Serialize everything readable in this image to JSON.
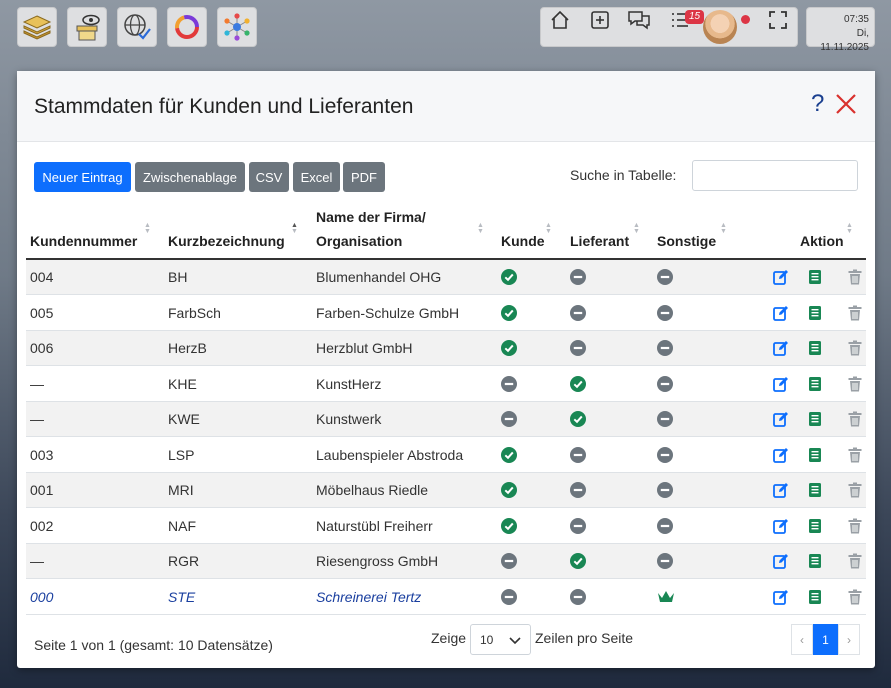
{
  "clock": {
    "time": "07:35",
    "date": "Di, 11.11.2025"
  },
  "notifications": {
    "count": "15"
  },
  "modal": {
    "title": "Stammdaten für Kunden und Lieferanten",
    "help": "?"
  },
  "toolbar": {
    "new_entry": "Neuer Eintrag",
    "clipboard": "Zwischenablage",
    "csv": "CSV",
    "excel": "Excel",
    "pdf": "PDF",
    "search_label": "Suche in Tabelle:",
    "search_value": ""
  },
  "table": {
    "headers": {
      "kundennummer": "Kundennummer",
      "kurz": "Kurzbezeichnung",
      "name_line1": "Name der Firma/",
      "name_line2": "Organisation",
      "kunde": "Kunde",
      "lieferant": "Lieferant",
      "sonstige": "Sonstige",
      "aktion": "Aktion"
    },
    "rows": [
      {
        "nr": "004",
        "kurz": "BH",
        "name": "Blumenhandel OHG",
        "kunde": "yes",
        "lieferant": "no",
        "sonstige": "no"
      },
      {
        "nr": "005",
        "kurz": "FarbSch",
        "name": "Farben-Schulze GmbH",
        "kunde": "yes",
        "lieferant": "no",
        "sonstige": "no"
      },
      {
        "nr": "006",
        "kurz": "HerzB",
        "name": "Herzblut GmbH",
        "kunde": "yes",
        "lieferant": "no",
        "sonstige": "no"
      },
      {
        "nr": "—",
        "kurz": "KHE",
        "name": "KunstHerz",
        "kunde": "no",
        "lieferant": "yes",
        "sonstige": "no"
      },
      {
        "nr": "—",
        "kurz": "KWE",
        "name": "Kunstwerk",
        "kunde": "no",
        "lieferant": "yes",
        "sonstige": "no"
      },
      {
        "nr": "003",
        "kurz": "LSP",
        "name": "Laubenspieler Abstroda",
        "kunde": "yes",
        "lieferant": "no",
        "sonstige": "no"
      },
      {
        "nr": "001",
        "kurz": "MRI",
        "name": "Möbelhaus Riedle",
        "kunde": "yes",
        "lieferant": "no",
        "sonstige": "no"
      },
      {
        "nr": "002",
        "kurz": "NAF",
        "name": "Naturstübl Freiherr",
        "kunde": "yes",
        "lieferant": "no",
        "sonstige": "no"
      },
      {
        "nr": "—",
        "kurz": "RGR",
        "name": "Riesengross GmbH",
        "kunde": "no",
        "lieferant": "yes",
        "sonstige": "no"
      },
      {
        "nr": "000",
        "kurz": "STE",
        "name": "Schreinerei Tertz",
        "kunde": "no",
        "lieferant": "no",
        "sonstige": "crown"
      }
    ]
  },
  "footer": {
    "info": "Seite 1 von 1 (gesamt: 10 Datensätze)",
    "zeige": "Zeige",
    "page_size": "10",
    "zeilen": "Zeilen pro Seite",
    "prev": "‹",
    "page": "1",
    "next": "›"
  },
  "colors": {
    "check": "#198754",
    "minus": "#6c757d",
    "primary": "#0d6efd",
    "special_text": "#1a3f9f"
  }
}
